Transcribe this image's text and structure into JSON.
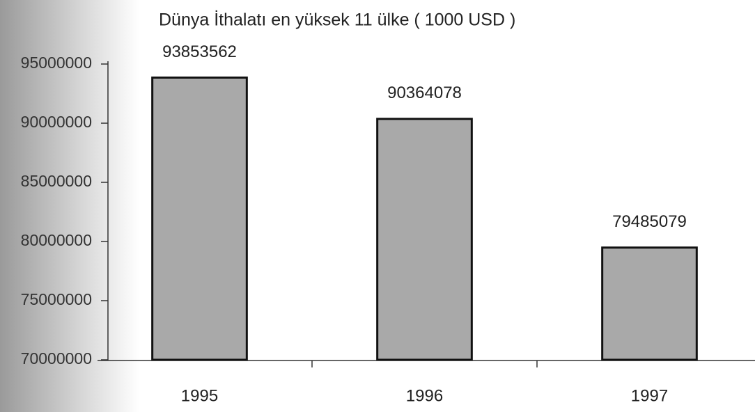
{
  "chart_data": {
    "type": "bar",
    "title": "Dünya İthalatı en yüksek 11 ülke ( 1000 USD )",
    "categories": [
      "1995",
      "1996",
      "1997"
    ],
    "values": [
      93853562,
      90364078,
      79485079
    ],
    "color": "#a9a9a9",
    "ylim": [
      70000000,
      95000000
    ],
    "yticks": [
      70000000,
      75000000,
      80000000,
      85000000,
      90000000,
      95000000
    ],
    "grid": false
  }
}
